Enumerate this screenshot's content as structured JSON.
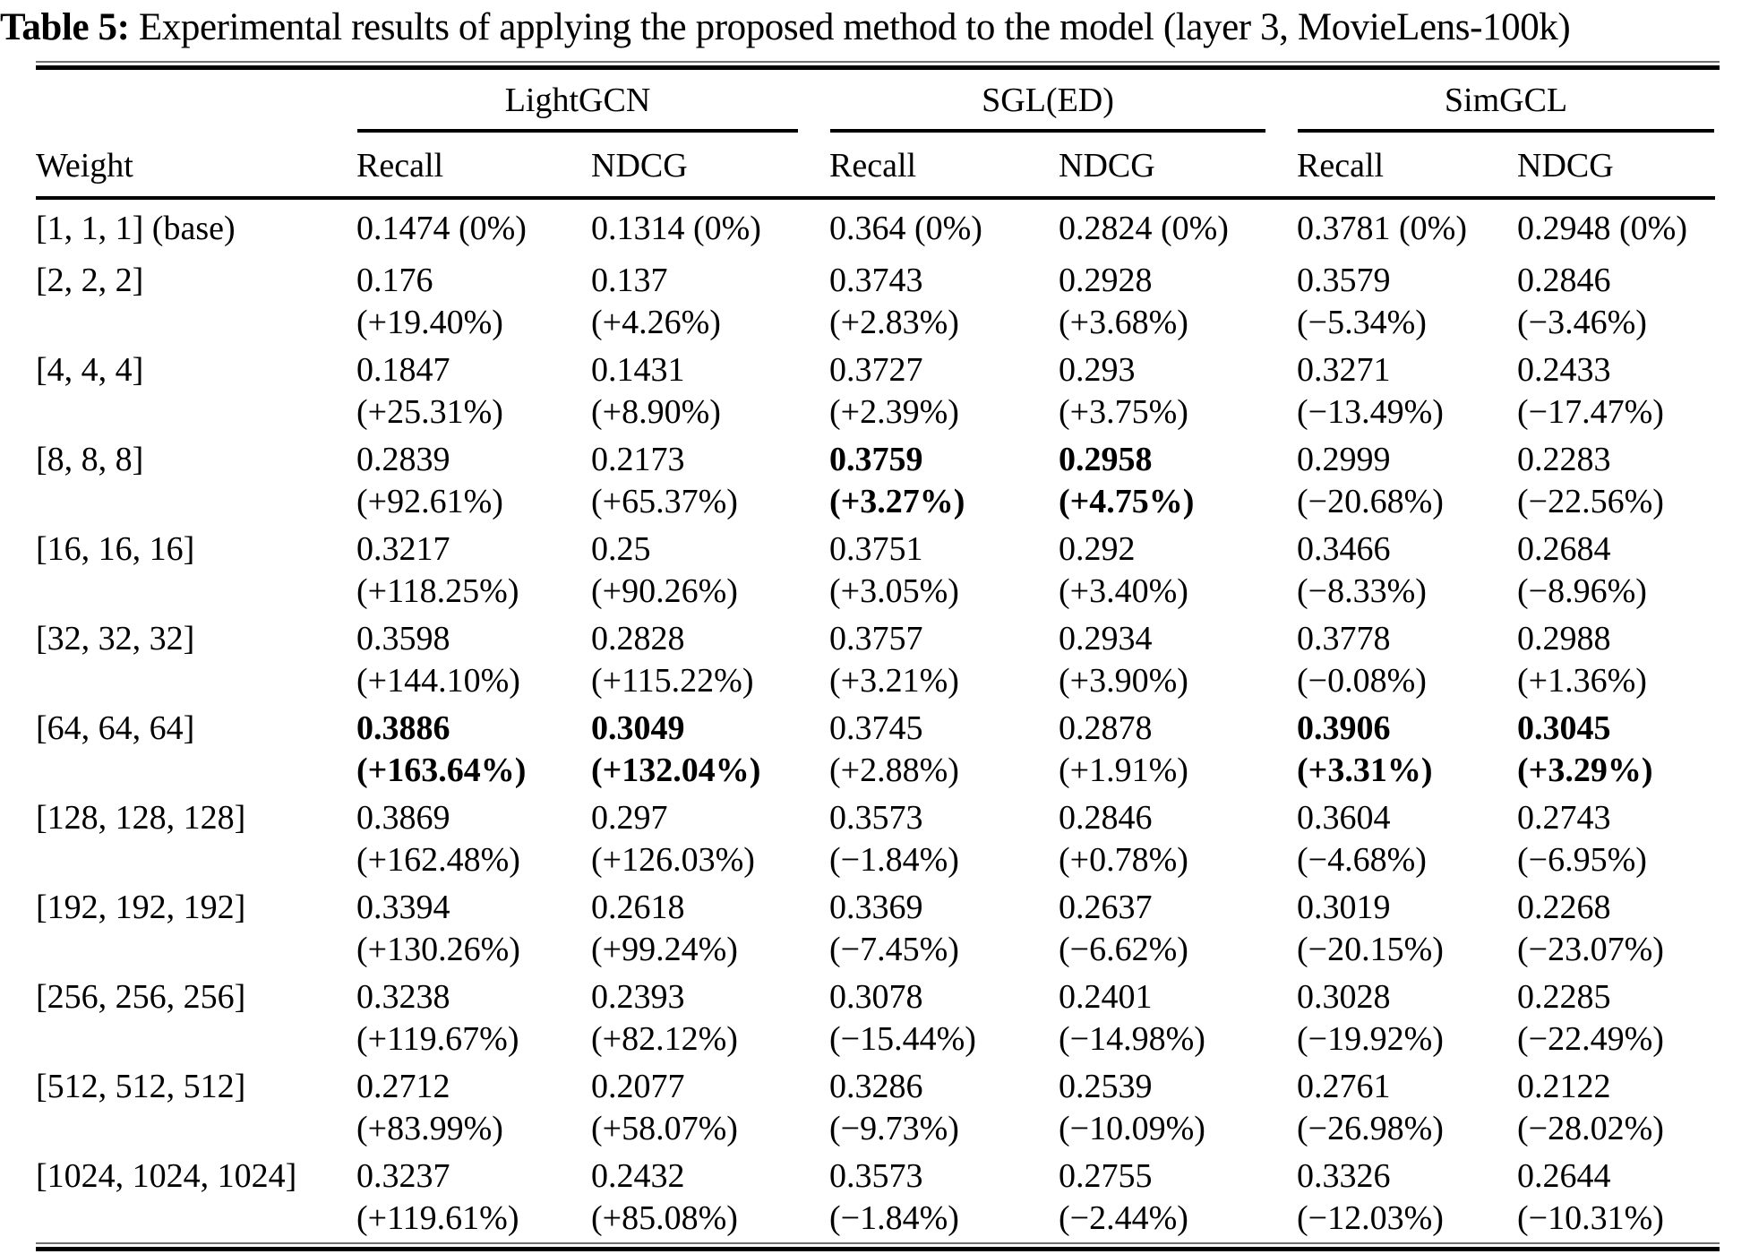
{
  "title": {
    "label": "Table 5:",
    "text": " Experimental results of applying the proposed method to the model (layer 3, MovieLens-100k)"
  },
  "table": {
    "groups": [
      "LightGCN",
      "SGL(ED)",
      "SimGCL"
    ],
    "col_headers": {
      "weight": "Weight",
      "metrics": [
        "Recall",
        "NDCG",
        "Recall",
        "NDCG",
        "Recall",
        "NDCG"
      ]
    },
    "rows": [
      {
        "weight": "[1, 1, 1] (base)",
        "cells": [
          {
            "v": "0.1474 (0%)"
          },
          {
            "v": "0.1314 (0%)"
          },
          {
            "v": "0.364 (0%)"
          },
          {
            "v": "0.2824 (0%)"
          },
          {
            "v": "0.3781 (0%)"
          },
          {
            "v": "0.2948 (0%)"
          }
        ]
      },
      {
        "weight": "[2, 2, 2]",
        "cells": [
          {
            "v": "0.176",
            "p": "(+19.40%)"
          },
          {
            "v": "0.137",
            "p": "(+4.26%)"
          },
          {
            "v": "0.3743",
            "p": "(+2.83%)"
          },
          {
            "v": "0.2928",
            "p": "(+3.68%)"
          },
          {
            "v": "0.3579",
            "p": "(−5.34%)"
          },
          {
            "v": "0.2846",
            "p": "(−3.46%)"
          }
        ]
      },
      {
        "weight": "[4, 4, 4]",
        "cells": [
          {
            "v": "0.1847",
            "p": "(+25.31%)"
          },
          {
            "v": "0.1431",
            "p": "(+8.90%)"
          },
          {
            "v": "0.3727",
            "p": "(+2.39%)"
          },
          {
            "v": "0.293",
            "p": "(+3.75%)"
          },
          {
            "v": "0.3271",
            "p": "(−13.49%)"
          },
          {
            "v": "0.2433",
            "p": "(−17.47%)"
          }
        ]
      },
      {
        "weight": "[8, 8, 8]",
        "cells": [
          {
            "v": "0.2839",
            "p": "(+92.61%)"
          },
          {
            "v": "0.2173",
            "p": "(+65.37%)"
          },
          {
            "v": "0.3759",
            "p": "(+3.27%)",
            "bold": true
          },
          {
            "v": "0.2958",
            "p": "(+4.75%)",
            "bold": true
          },
          {
            "v": "0.2999",
            "p": "(−20.68%)"
          },
          {
            "v": "0.2283",
            "p": "(−22.56%)"
          }
        ]
      },
      {
        "weight": "[16, 16, 16]",
        "cells": [
          {
            "v": "0.3217",
            "p": "(+118.25%)"
          },
          {
            "v": "0.25",
            "p": "(+90.26%)"
          },
          {
            "v": "0.3751",
            "p": "(+3.05%)"
          },
          {
            "v": "0.292",
            "p": "(+3.40%)"
          },
          {
            "v": "0.3466",
            "p": "(−8.33%)"
          },
          {
            "v": "0.2684",
            "p": "(−8.96%)"
          }
        ]
      },
      {
        "weight": "[32, 32, 32]",
        "cells": [
          {
            "v": "0.3598",
            "p": "(+144.10%)"
          },
          {
            "v": "0.2828",
            "p": "(+115.22%)"
          },
          {
            "v": "0.3757",
            "p": "(+3.21%)"
          },
          {
            "v": "0.2934",
            "p": "(+3.90%)"
          },
          {
            "v": "0.3778",
            "p": "(−0.08%)"
          },
          {
            "v": "0.2988",
            "p": "(+1.36%)"
          }
        ]
      },
      {
        "weight": "[64, 64, 64]",
        "cells": [
          {
            "v": "0.3886",
            "p": "(+163.64%)",
            "bold": true
          },
          {
            "v": "0.3049",
            "p": "(+132.04%)",
            "bold": true
          },
          {
            "v": "0.3745",
            "p": "(+2.88%)"
          },
          {
            "v": "0.2878",
            "p": "(+1.91%)"
          },
          {
            "v": "0.3906",
            "p": "(+3.31%)",
            "bold": true
          },
          {
            "v": "0.3045",
            "p": "(+3.29%)",
            "bold": true
          }
        ]
      },
      {
        "weight": "[128, 128, 128]",
        "cells": [
          {
            "v": "0.3869",
            "p": "(+162.48%)"
          },
          {
            "v": "0.297",
            "p": "(+126.03%)"
          },
          {
            "v": "0.3573",
            "p": "(−1.84%)"
          },
          {
            "v": "0.2846",
            "p": "(+0.78%)"
          },
          {
            "v": "0.3604",
            "p": "(−4.68%)"
          },
          {
            "v": "0.2743",
            "p": "(−6.95%)"
          }
        ]
      },
      {
        "weight": "[192, 192, 192]",
        "cells": [
          {
            "v": "0.3394",
            "p": "(+130.26%)"
          },
          {
            "v": "0.2618",
            "p": "(+99.24%)"
          },
          {
            "v": "0.3369",
            "p": "(−7.45%)"
          },
          {
            "v": "0.2637",
            "p": "(−6.62%)"
          },
          {
            "v": "0.3019",
            "p": "(−20.15%)"
          },
          {
            "v": "0.2268",
            "p": "(−23.07%)"
          }
        ]
      },
      {
        "weight": "[256, 256, 256]",
        "cells": [
          {
            "v": "0.3238",
            "p": "(+119.67%)"
          },
          {
            "v": "0.2393",
            "p": "(+82.12%)"
          },
          {
            "v": "0.3078",
            "p": "(−15.44%)"
          },
          {
            "v": "0.2401",
            "p": "(−14.98%)"
          },
          {
            "v": "0.3028",
            "p": "(−19.92%)"
          },
          {
            "v": "0.2285",
            "p": "(−22.49%)"
          }
        ]
      },
      {
        "weight": "[512, 512, 512]",
        "cells": [
          {
            "v": "0.2712",
            "p": "(+83.99%)"
          },
          {
            "v": "0.2077",
            "p": "(+58.07%)"
          },
          {
            "v": "0.3286",
            "p": "(−9.73%)"
          },
          {
            "v": "0.2539",
            "p": "(−10.09%)"
          },
          {
            "v": "0.2761",
            "p": "(−26.98%)"
          },
          {
            "v": "0.2122",
            "p": "(−28.02%)"
          }
        ]
      },
      {
        "weight": "[1024, 1024, 1024]",
        "cells": [
          {
            "v": "0.3237",
            "p": "(+119.61%)"
          },
          {
            "v": "0.2432",
            "p": "(+85.08%)"
          },
          {
            "v": "0.3573",
            "p": "(−1.84%)"
          },
          {
            "v": "0.2755",
            "p": "(−2.44%)"
          },
          {
            "v": "0.3326",
            "p": "(−12.03%)"
          },
          {
            "v": "0.2644",
            "p": "(−10.31%)"
          }
        ]
      }
    ]
  }
}
